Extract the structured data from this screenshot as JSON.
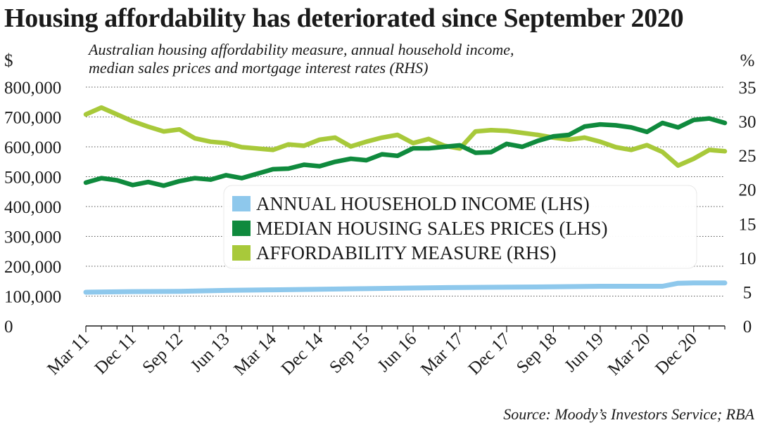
{
  "title": "Housing affordability has deteriorated since September 2020",
  "subtitle": [
    "Australian housing affordability measure, annual household income,",
    "median sales prices and mortgage interest rates (RHS)"
  ],
  "source": "Source: Moody’s Investors Service; RBA",
  "chart_data": {
    "type": "line",
    "title": "Housing affordability has deteriorated since September 2020",
    "y_left": {
      "unit": "$",
      "range": [
        0,
        800000
      ],
      "ticks": [
        0,
        100000,
        200000,
        300000,
        400000,
        500000,
        600000,
        700000,
        800000
      ],
      "tick_labels": [
        "0",
        "100,000",
        "200,000",
        "300,000",
        "400,000",
        "500,000",
        "600,000",
        "700,000",
        "800,000"
      ]
    },
    "y_right": {
      "unit": "%",
      "range": [
        0,
        35
      ],
      "ticks": [
        0,
        5,
        10,
        15,
        20,
        25,
        30,
        35
      ],
      "tick_labels": [
        "0",
        "5",
        "10",
        "15",
        "20",
        "25",
        "30",
        "35"
      ]
    },
    "x_tick_labels": [
      "Mar 11",
      "Dec 11",
      "Sep 12",
      "Jun 13",
      "Mar 14",
      "Dec 14",
      "Sep 15",
      "Jun 16",
      "Mar 17",
      "Dec 17",
      "Sep 18",
      "Jun 19",
      "Mar 20",
      "Dec 20"
    ],
    "grid": "horizontal dotted",
    "legend_position": "center",
    "series": [
      {
        "name": "ANNUAL HOUSEHOLD INCOME (LHS)",
        "axis": "left",
        "color": "#8ec8ec",
        "points": [
          [
            "Mar 11",
            113000
          ],
          [
            "Dec 11",
            115000
          ],
          [
            "Sep 12",
            116000
          ],
          [
            "Jun 13",
            119000
          ],
          [
            "Mar 14",
            121000
          ],
          [
            "Dec 14",
            123000
          ],
          [
            "Sep 15",
            125000
          ],
          [
            "Jun 16",
            127000
          ],
          [
            "Mar 17",
            129000
          ],
          [
            "Dec 17",
            130000
          ],
          [
            "Sep 18",
            131000
          ],
          [
            "Jun 19",
            133000
          ],
          [
            "Mar 20",
            133000
          ],
          [
            "Jun 20",
            133000
          ],
          [
            "Sep 20",
            143000
          ],
          [
            "Dec 20",
            144000
          ],
          [
            "Mar 21",
            144000
          ],
          [
            "Jun 21",
            144000
          ]
        ]
      },
      {
        "name": "MEDIAN HOUSING SALES PRICES (LHS)",
        "axis": "left",
        "color": "#0f8a3d",
        "points": [
          [
            "Mar 11",
            480000
          ],
          [
            "Jun 11",
            495000
          ],
          [
            "Sep 11",
            488000
          ],
          [
            "Dec 11",
            472000
          ],
          [
            "Mar 12",
            482000
          ],
          [
            "Jun 12",
            470000
          ],
          [
            "Sep 12",
            485000
          ],
          [
            "Dec 12",
            495000
          ],
          [
            "Mar 13",
            490000
          ],
          [
            "Jun 13",
            505000
          ],
          [
            "Sep 13",
            495000
          ],
          [
            "Dec 13",
            510000
          ],
          [
            "Mar 14",
            525000
          ],
          [
            "Jun 14",
            527000
          ],
          [
            "Sep 14",
            540000
          ],
          [
            "Dec 14",
            535000
          ],
          [
            "Mar 15",
            550000
          ],
          [
            "Jun 15",
            560000
          ],
          [
            "Sep 15",
            555000
          ],
          [
            "Dec 15",
            575000
          ],
          [
            "Mar 16",
            570000
          ],
          [
            "Jun 16",
            595000
          ],
          [
            "Sep 16",
            595000
          ],
          [
            "Dec 16",
            600000
          ],
          [
            "Mar 17",
            605000
          ],
          [
            "Jun 17",
            580000
          ],
          [
            "Sep 17",
            582000
          ],
          [
            "Dec 17",
            610000
          ],
          [
            "Mar 18",
            600000
          ],
          [
            "Jun 18",
            620000
          ],
          [
            "Sep 18",
            635000
          ],
          [
            "Dec 18",
            640000
          ],
          [
            "Mar 19",
            668000
          ],
          [
            "Jun 19",
            675000
          ],
          [
            "Sep 19",
            672000
          ],
          [
            "Dec 19",
            665000
          ],
          [
            "Mar 20",
            650000
          ],
          [
            "Jun 20",
            680000
          ],
          [
            "Sep 20",
            665000
          ],
          [
            "Dec 20",
            690000
          ],
          [
            "Mar 21",
            695000
          ],
          [
            "Jun 21",
            680000
          ]
        ]
      },
      {
        "name": "AFFORDABILITY MEASURE (RHS)",
        "axis": "right",
        "color": "#a8c93a",
        "points": [
          [
            "Mar 11",
            31.0
          ],
          [
            "Jun 11",
            32.0
          ],
          [
            "Sep 11",
            31.0
          ],
          [
            "Dec 11",
            30.0
          ],
          [
            "Mar 12",
            29.2
          ],
          [
            "Jun 12",
            28.5
          ],
          [
            "Sep 12",
            28.8
          ],
          [
            "Dec 12",
            27.5
          ],
          [
            "Mar 13",
            27.0
          ],
          [
            "Jun 13",
            26.8
          ],
          [
            "Sep 13",
            26.2
          ],
          [
            "Dec 13",
            26.0
          ],
          [
            "Mar 14",
            25.8
          ],
          [
            "Jun 14",
            26.6
          ],
          [
            "Sep 14",
            26.4
          ],
          [
            "Dec 14",
            27.3
          ],
          [
            "Mar 15",
            27.6
          ],
          [
            "Jun 15",
            26.3
          ],
          [
            "Sep 15",
            27.0
          ],
          [
            "Dec 15",
            27.6
          ],
          [
            "Mar 16",
            28.0
          ],
          [
            "Jun 16",
            26.8
          ],
          [
            "Sep 16",
            27.4
          ],
          [
            "Dec 16",
            26.4
          ],
          [
            "Mar 17",
            26.0
          ],
          [
            "Jun 17",
            28.5
          ],
          [
            "Sep 17",
            28.7
          ],
          [
            "Dec 17",
            28.6
          ],
          [
            "Mar 18",
            28.3
          ],
          [
            "Jun 18",
            28.0
          ],
          [
            "Sep 18",
            27.6
          ],
          [
            "Dec 18",
            27.3
          ],
          [
            "Mar 19",
            27.6
          ],
          [
            "Jun 19",
            27.0
          ],
          [
            "Sep 19",
            26.2
          ],
          [
            "Dec 19",
            25.8
          ],
          [
            "Mar 20",
            26.5
          ],
          [
            "Jun 20",
            25.5
          ],
          [
            "Sep 20",
            23.5
          ],
          [
            "Dec 20",
            24.5
          ],
          [
            "Mar 21",
            25.8
          ],
          [
            "Jun 21",
            25.6
          ]
        ]
      }
    ]
  }
}
